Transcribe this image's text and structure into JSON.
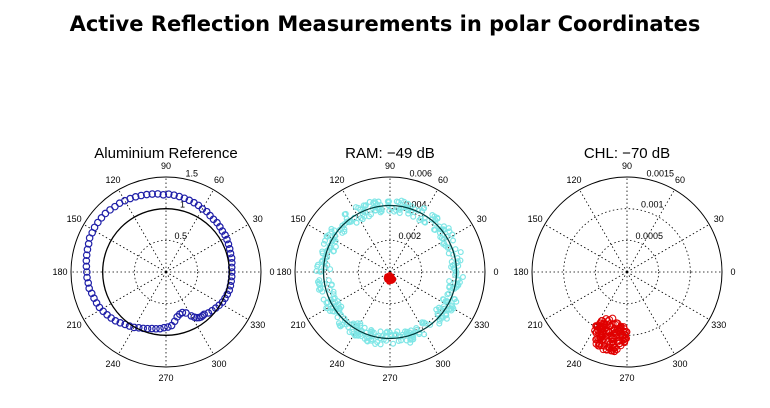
{
  "figure": {
    "title": "Active Reflection Measurements in polar Coordinates"
  },
  "chart_data": [
    {
      "type": "scatter",
      "polar": true,
      "title": "Aluminium Reference",
      "angle_tick_labels": [
        "0",
        "30",
        "60",
        "90",
        "120",
        "150",
        "180",
        "210",
        "240",
        "270",
        "300",
        "330"
      ],
      "radial_ticks": [
        0.5,
        1,
        1.5
      ],
      "radial_tick_labels": [
        "0.5",
        "1",
        "1.5"
      ],
      "rmax": 1.5,
      "reference_circle_r": 1.0,
      "reference_circle_color": "#000000",
      "series": [
        {
          "marker": "circle",
          "color": "#1f1fa8",
          "points_theta_deg": [
            84,
            88,
            92,
            96,
            100,
            104,
            108,
            112,
            116,
            120,
            124,
            128,
            132,
            136,
            140,
            144,
            148,
            152,
            156,
            160,
            164,
            168,
            172,
            176,
            180,
            184,
            188,
            192,
            196,
            200,
            204,
            208,
            212,
            216,
            220,
            224,
            228,
            232,
            236,
            240,
            244,
            248,
            252,
            256,
            260,
            264,
            268,
            272,
            276,
            280,
            284,
            288,
            292,
            296,
            300,
            302,
            304,
            306,
            308,
            310,
            312,
            316,
            320,
            324,
            328,
            332,
            336,
            340,
            344,
            348,
            352,
            356,
            0,
            4,
            8,
            12,
            16,
            20,
            24,
            28,
            32,
            36,
            40,
            44,
            48,
            52,
            56,
            60,
            64,
            68,
            72,
            76,
            80
          ],
          "points_r": [
            1.22,
            1.23,
            1.22,
            1.24,
            1.25,
            1.26,
            1.27,
            1.28,
            1.29,
            1.3,
            1.31,
            1.31,
            1.32,
            1.33,
            1.33,
            1.33,
            1.33,
            1.32,
            1.32,
            1.3,
            1.29,
            1.28,
            1.27,
            1.26,
            1.25,
            1.25,
            1.24,
            1.24,
            1.22,
            1.21,
            1.2,
            1.19,
            1.17,
            1.15,
            1.13,
            1.11,
            1.08,
            1.05,
            1.03,
            1.01,
            0.98,
            0.96,
            0.94,
            0.92,
            0.91,
            0.9,
            0.88,
            0.87,
            0.85,
            0.79,
            0.73,
            0.7,
            0.69,
            0.72,
            0.8,
            0.84,
            0.87,
            0.89,
            0.9,
            0.9,
            0.9,
            0.93,
            0.95,
            0.97,
            0.99,
            1.01,
            1.02,
            1.03,
            1.04,
            1.04,
            1.04,
            1.04,
            1.04,
            1.04,
            1.05,
            1.06,
            1.06,
            1.07,
            1.08,
            1.09,
            1.1,
            1.1,
            1.11,
            1.12,
            1.12,
            1.13,
            1.15,
            1.15,
            1.17,
            1.18,
            1.19,
            1.2,
            1.21
          ]
        }
      ]
    },
    {
      "type": "scatter",
      "polar": true,
      "title": "RAM: −49 dB",
      "angle_tick_labels": [
        "0",
        "30",
        "60",
        "90",
        "120",
        "150",
        "180",
        "210",
        "240",
        "270",
        "300",
        "330"
      ],
      "radial_ticks": [
        0.002,
        0.004,
        0.006
      ],
      "radial_tick_labels": [
        "0.002",
        "0.004",
        "0.006"
      ],
      "rmax": 0.006,
      "reference_circle_r": 0.0042,
      "reference_circle_color": "#003b3b",
      "series": [
        {
          "marker": "band",
          "color": "#7fe6e6",
          "band_center_r": 0.0042,
          "band_halfwidth_r": 0.00045
        },
        {
          "marker": "cluster",
          "color": "#e00000",
          "center_theta_deg": 270,
          "center_r": 0.0004,
          "spread_r": 0.00025
        }
      ]
    },
    {
      "type": "scatter",
      "polar": true,
      "title": "CHL: −70 dB",
      "angle_tick_labels": [
        "0",
        "30",
        "60",
        "90",
        "120",
        "150",
        "180",
        "210",
        "240",
        "270",
        "300",
        "330"
      ],
      "radial_ticks": [
        0.0005,
        0.001,
        0.0015
      ],
      "radial_tick_labels": [
        "0.0005",
        "0.001",
        "0.0015"
      ],
      "rmax": 0.0015,
      "series": [
        {
          "marker": "cluster",
          "color": "#e00000",
          "center_theta_deg": 255,
          "center_r": 0.00103,
          "spread_r": 0.00027
        }
      ]
    }
  ]
}
